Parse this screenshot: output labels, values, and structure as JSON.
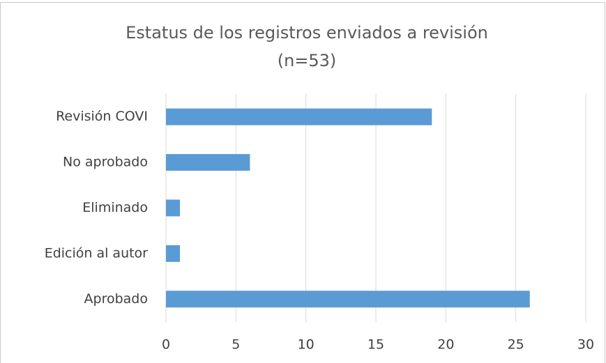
{
  "chart_data": {
    "type": "hbar",
    "title": "Estatus de los registros enviados a revisión",
    "subtitle": "(n=53)",
    "categories": [
      "Revisión COVI",
      "No aprobado",
      "Eliminado",
      "Edición al autor",
      "Aprobado"
    ],
    "values": [
      19,
      6,
      1,
      1,
      26
    ],
    "color": "#5b9bd5",
    "xlim": [
      0,
      30
    ],
    "xticks": [
      0,
      5,
      10,
      15,
      20,
      25,
      30
    ],
    "grid": true
  }
}
